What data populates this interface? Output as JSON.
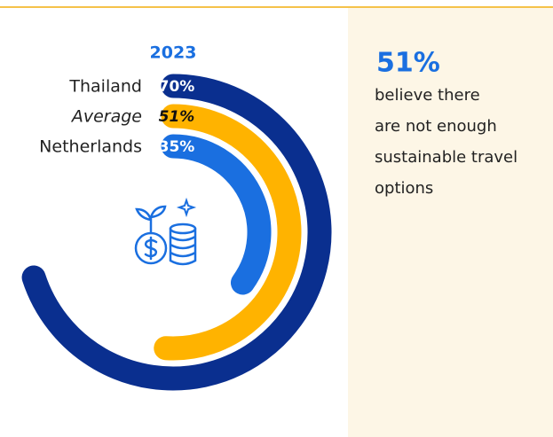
{
  "chart_data": {
    "type": "radial-bar",
    "title": "2023",
    "categories": [
      "Thailand",
      "Average",
      "Netherlands"
    ],
    "values": [
      70,
      51,
      35
    ],
    "value_labels": [
      "70%",
      "51%",
      "35%"
    ],
    "colors": [
      "#0a2f8f",
      "#ffb300",
      "#1a6fe0"
    ],
    "label_colors": [
      "#ffffff",
      "#111111",
      "#ffffff"
    ],
    "ylim": [
      0,
      100
    ]
  },
  "callout": {
    "value_label": "51%",
    "lines": [
      "believe there",
      "are not enough",
      "sustainable travel",
      "options"
    ]
  }
}
